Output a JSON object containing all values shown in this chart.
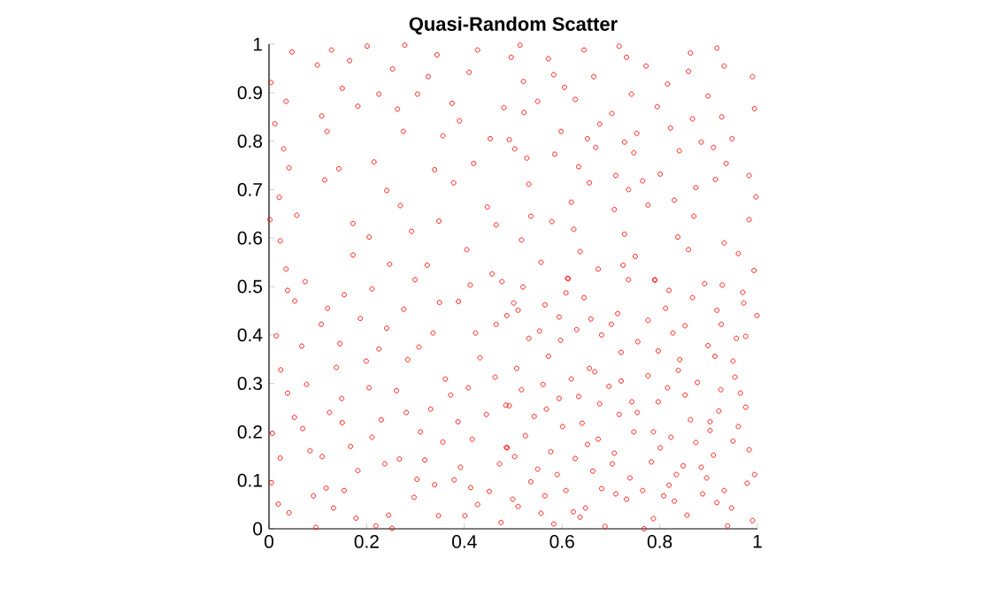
{
  "chart_data": {
    "type": "scatter",
    "title": "Quasi-Random  Scatter",
    "x": [
      0.047,
      0.128,
      0.201,
      0.278,
      0.344,
      0.427,
      0.004,
      0.099,
      0.165,
      0.253,
      0.326,
      0.41,
      0.15,
      0.035,
      0.225,
      0.304,
      0.375,
      0.012,
      0.108,
      0.182,
      0.263,
      0.39,
      0.481,
      0.03,
      0.119,
      0.275,
      0.356,
      0.453,
      0.041,
      0.143,
      0.215,
      0.339,
      0.419,
      0.021,
      0.114,
      0.241,
      0.378,
      0.447,
      0.002,
      0.057,
      0.172,
      0.269,
      0.348,
      0.465,
      0.023,
      0.205,
      0.292,
      0.405,
      0.035,
      0.172,
      0.247,
      0.324,
      0.457,
      0.514,
      0.572,
      0.645,
      0.717,
      0.732,
      0.863,
      0.917,
      0.496,
      0.521,
      0.583,
      0.665,
      0.772,
      0.859,
      0.932,
      0.99,
      0.605,
      0.742,
      0.816,
      0.55,
      0.627,
      0.795,
      0.899,
      0.994,
      0.522,
      0.702,
      0.867,
      0.927,
      0.598,
      0.677,
      0.753,
      0.822,
      0.948,
      0.492,
      0.652,
      0.728,
      0.885,
      0.503,
      0.585,
      0.669,
      0.747,
      0.84,
      0.91,
      0.528,
      0.634,
      0.71,
      0.801,
      0.936,
      0.983,
      0.532,
      0.656,
      0.765,
      0.874,
      0.914,
      0.619,
      0.736,
      0.83,
      0.997,
      0.536,
      0.707,
      0.776,
      0.87,
      0.983,
      0.579,
      0.624,
      0.728,
      0.837,
      0.932,
      0.517,
      0.637,
      0.75,
      0.859,
      0.961,
      0.557,
      0.674,
      0.725,
      0.79,
      0.993,
      0.611,
      0.038,
      0.074,
      0.154,
      0.211,
      0.299,
      0.412,
      0.477,
      0.053,
      0.12,
      0.187,
      0.276,
      0.349,
      0.388,
      0.015,
      0.107,
      0.241,
      0.336,
      0.423,
      0.067,
      0.145,
      0.225,
      0.307,
      0.465,
      0.024,
      0.138,
      0.199,
      0.284,
      0.432,
      0.077,
      0.205,
      0.361,
      0.408,
      0.463,
      0.038,
      0.149,
      0.261,
      0.372,
      0.485,
      0.124,
      0.281,
      0.445,
      0.052,
      0.23,
      0.331,
      0.007,
      0.15,
      0.387,
      0.069,
      0.211,
      0.31,
      0.356,
      0.416,
      0.486,
      0.023,
      0.084,
      0.167,
      0.109,
      0.267,
      0.319,
      0.392,
      0.472,
      0.005,
      0.182,
      0.237,
      0.303,
      0.379,
      0.117,
      0.154,
      0.339,
      0.413,
      0.451,
      0.019,
      0.091,
      0.132,
      0.297,
      0.427,
      0.041,
      0.178,
      0.245,
      0.347,
      0.401,
      0.096,
      0.219,
      0.252,
      0.475,
      0.52,
      0.613,
      0.608,
      0.645,
      0.736,
      0.79,
      0.819,
      0.892,
      0.928,
      0.97,
      0.501,
      0.565,
      0.867,
      0.972,
      0.51,
      0.594,
      0.659,
      0.714,
      0.776,
      0.812,
      0.917,
      0.999,
      0.487,
      0.554,
      0.63,
      0.681,
      0.701,
      0.827,
      0.852,
      0.926,
      0.957,
      0.976,
      0.532,
      0.597,
      0.721,
      0.755,
      0.899,
      0.572,
      0.797,
      0.841,
      0.913,
      0.507,
      0.656,
      0.667,
      0.838,
      0.95,
      0.619,
      0.721,
      0.776,
      0.877,
      0.954,
      0.561,
      0.696,
      0.816,
      0.925,
      0.517,
      0.594,
      0.634,
      0.677,
      0.743,
      0.797,
      0.852,
      0.965,
      0.492,
      0.568,
      0.921,
      0.976,
      0.543,
      0.717,
      0.754,
      0.863,
      0.903,
      0.601,
      0.641,
      0.903,
      0.961,
      0.525,
      0.674,
      0.747,
      0.787,
      0.823,
      0.652,
      0.874,
      0.95,
      0.488,
      0.801,
      0.503,
      0.577,
      0.707,
      0.91,
      0.983,
      0.627,
      0.703,
      0.783,
      0.848,
      0.55,
      0.663,
      0.885,
      0.994,
      0.536,
      0.59,
      0.739,
      0.834,
      0.896,
      0.979,
      0.608,
      0.681,
      0.765,
      0.819,
      0.499,
      0.565,
      0.71,
      0.808,
      0.888,
      0.932,
      0.51,
      0.648,
      0.732,
      0.83,
      0.917,
      0.947,
      0.623,
      0.557,
      0.637,
      0.787,
      0.856,
      0.583,
      0.688,
      0.768,
      0.939,
      0.99
    ],
    "values": [
      0.984,
      0.988,
      0.996,
      0.998,
      0.978,
      0.988,
      0.921,
      0.957,
      0.966,
      0.949,
      0.933,
      0.942,
      0.909,
      0.882,
      0.897,
      0.897,
      0.878,
      0.836,
      0.852,
      0.872,
      0.866,
      0.842,
      0.869,
      0.784,
      0.82,
      0.82,
      0.811,
      0.805,
      0.745,
      0.743,
      0.757,
      0.741,
      0.754,
      0.684,
      0.72,
      0.698,
      0.714,
      0.664,
      0.638,
      0.647,
      0.63,
      0.667,
      0.635,
      0.627,
      0.594,
      0.602,
      0.614,
      0.576,
      0.536,
      0.565,
      0.546,
      0.544,
      0.526,
      0.998,
      0.97,
      0.988,
      0.996,
      0.973,
      0.982,
      0.992,
      0.973,
      0.923,
      0.937,
      0.933,
      0.955,
      0.944,
      0.955,
      0.933,
      0.911,
      0.897,
      0.918,
      0.882,
      0.886,
      0.871,
      0.893,
      0.867,
      0.859,
      0.857,
      0.846,
      0.85,
      0.82,
      0.835,
      0.816,
      0.827,
      0.805,
      0.803,
      0.805,
      0.798,
      0.798,
      0.784,
      0.773,
      0.787,
      0.776,
      0.78,
      0.787,
      0.765,
      0.747,
      0.729,
      0.732,
      0.754,
      0.729,
      0.711,
      0.714,
      0.718,
      0.704,
      0.721,
      0.674,
      0.7,
      0.678,
      0.685,
      0.645,
      0.659,
      0.668,
      0.645,
      0.638,
      0.634,
      0.618,
      0.608,
      0.602,
      0.59,
      0.596,
      0.572,
      0.562,
      0.576,
      0.568,
      0.55,
      0.536,
      0.544,
      0.513,
      0.533,
      0.517,
      0.492,
      0.51,
      0.483,
      0.495,
      0.514,
      0.503,
      0.51,
      0.47,
      0.455,
      0.434,
      0.453,
      0.467,
      0.469,
      0.398,
      0.422,
      0.414,
      0.404,
      0.404,
      0.377,
      0.382,
      0.371,
      0.375,
      0.422,
      0.328,
      0.333,
      0.346,
      0.349,
      0.353,
      0.298,
      0.291,
      0.309,
      0.291,
      0.313,
      0.28,
      0.269,
      0.285,
      0.276,
      0.255,
      0.24,
      0.24,
      0.236,
      0.23,
      0.225,
      0.247,
      0.197,
      0.219,
      0.221,
      0.207,
      0.189,
      0.2,
      0.179,
      0.185,
      0.168,
      0.146,
      0.161,
      0.17,
      0.149,
      0.144,
      0.142,
      0.127,
      0.134,
      0.095,
      0.12,
      0.134,
      0.102,
      0.101,
      0.084,
      0.079,
      0.091,
      0.085,
      0.077,
      0.051,
      0.068,
      0.043,
      0.065,
      0.05,
      0.033,
      0.022,
      0.028,
      0.027,
      0.027,
      0.003,
      0.006,
      0.001,
      0.013,
      0.499,
      0.516,
      0.487,
      0.477,
      0.514,
      0.514,
      0.492,
      0.506,
      0.503,
      0.488,
      0.466,
      0.462,
      0.477,
      0.466,
      0.451,
      0.437,
      0.433,
      0.444,
      0.43,
      0.455,
      0.451,
      0.44,
      0.44,
      0.408,
      0.411,
      0.4,
      0.422,
      0.404,
      0.419,
      0.422,
      0.393,
      0.397,
      0.393,
      0.389,
      0.364,
      0.386,
      0.378,
      0.356,
      0.367,
      0.349,
      0.356,
      0.331,
      0.331,
      0.324,
      0.327,
      0.346,
      0.309,
      0.305,
      0.316,
      0.302,
      0.313,
      0.298,
      0.294,
      0.291,
      0.287,
      0.287,
      0.269,
      0.273,
      0.258,
      0.262,
      0.262,
      0.276,
      0.28,
      0.254,
      0.247,
      0.243,
      0.251,
      0.232,
      0.236,
      0.24,
      0.225,
      0.221,
      0.211,
      0.218,
      0.203,
      0.211,
      0.192,
      0.185,
      0.2,
      0.2,
      0.189,
      0.174,
      0.178,
      0.181,
      0.167,
      0.167,
      0.149,
      0.159,
      0.156,
      0.152,
      0.163,
      0.145,
      0.134,
      0.138,
      0.13,
      0.123,
      0.119,
      0.127,
      0.112,
      0.097,
      0.112,
      0.105,
      0.112,
      0.105,
      0.094,
      0.079,
      0.083,
      0.079,
      0.09,
      0.061,
      0.068,
      0.072,
      0.068,
      0.072,
      0.079,
      0.046,
      0.043,
      0.061,
      0.057,
      0.054,
      0.043,
      0.035,
      0.032,
      0.024,
      0.021,
      0.028,
      0.01,
      0.005,
      0.0,
      0.006,
      0.017
    ],
    "color": "#ff0000",
    "marker": "circle",
    "xlim": [
      0,
      1
    ],
    "xticks": [
      0,
      0.2,
      0.4,
      0.6,
      0.8,
      1
    ],
    "ylim": [
      0,
      1
    ],
    "yticks": [
      0,
      0.1,
      0.2,
      0.3,
      0.4,
      0.5,
      0.6,
      0.7,
      0.8,
      0.9,
      1
    ]
  }
}
